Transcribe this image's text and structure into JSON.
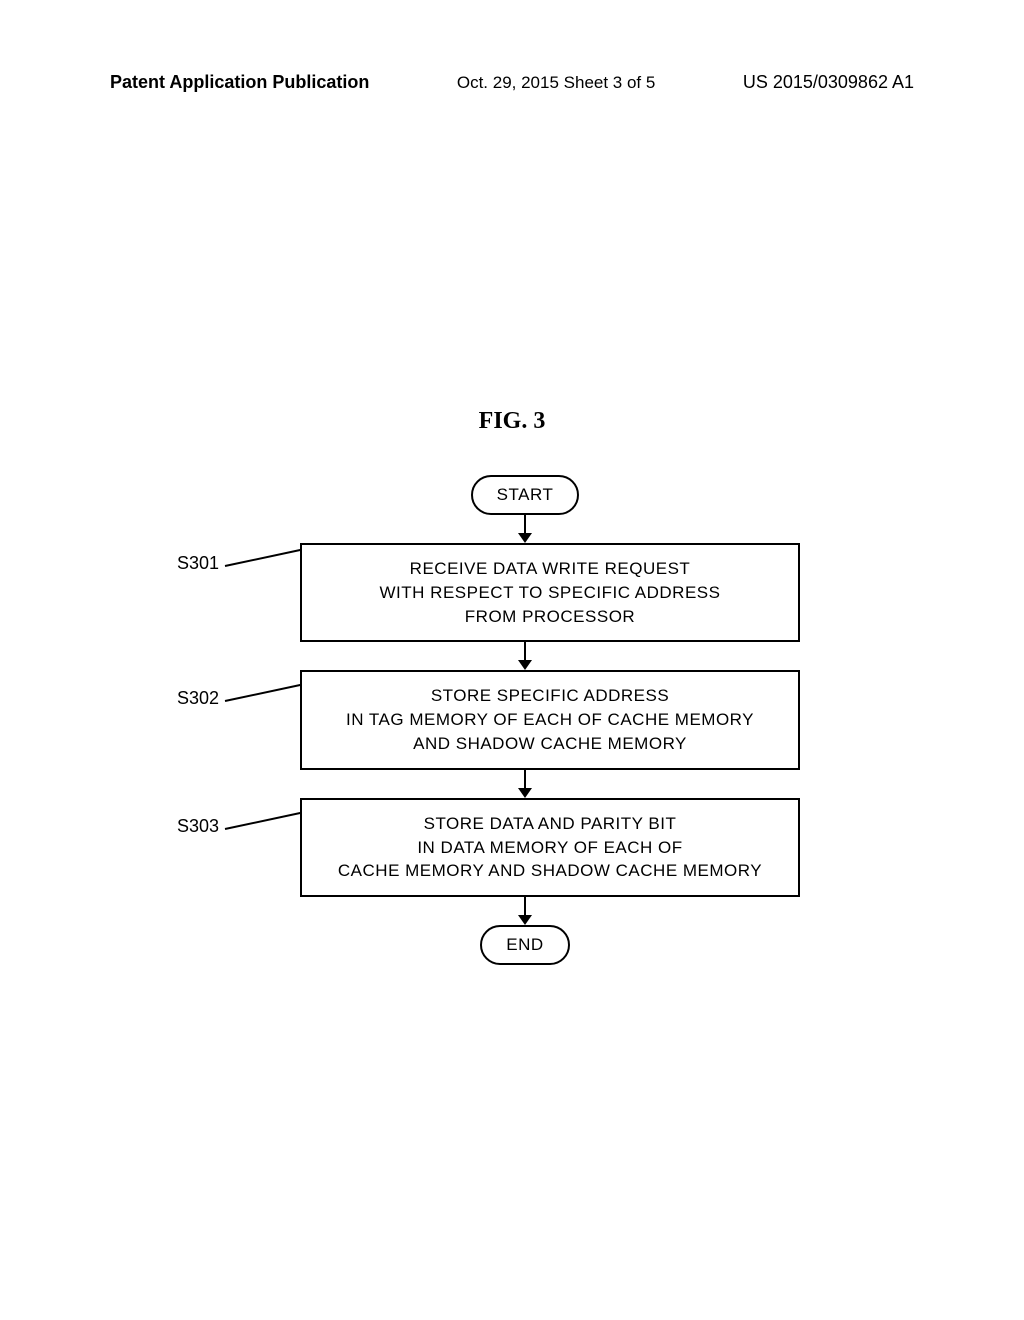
{
  "header": {
    "left": "Patent Application Publication",
    "center": "Oct. 29, 2015  Sheet 3 of 5",
    "right": "US 2015/0309862 A1"
  },
  "figure_title": "FIG. 3",
  "flowchart": {
    "type": "flowchart",
    "background_color": "#ffffff",
    "border_color": "#000000",
    "text_color": "#000000",
    "fontsize": 17,
    "nodes": [
      {
        "id": "start",
        "type": "terminal",
        "label": "START"
      },
      {
        "id": "s301",
        "type": "process",
        "label": "RECEIVE DATA WRITE REQUEST\nWITH RESPECT TO SPECIFIC ADDRESS\nFROM PROCESSOR",
        "step": "S301"
      },
      {
        "id": "s302",
        "type": "process",
        "label": "STORE SPECIFIC ADDRESS\nIN TAG MEMORY OF EACH OF CACHE MEMORY\nAND SHADOW CACHE MEMORY",
        "step": "S302"
      },
      {
        "id": "s303",
        "type": "process",
        "label": "STORE DATA AND PARITY BIT\nIN DATA MEMORY OF EACH OF\nCACHE MEMORY AND SHADOW CACHE MEMORY",
        "step": "S303"
      },
      {
        "id": "end",
        "type": "terminal",
        "label": "END"
      }
    ],
    "edges": [
      {
        "from": "start",
        "to": "s301"
      },
      {
        "from": "s301",
        "to": "s302"
      },
      {
        "from": "s302",
        "to": "s303"
      },
      {
        "from": "s303",
        "to": "end"
      }
    ],
    "step_labels": {
      "s301": "S301",
      "s302": "S302",
      "s303": "S303"
    }
  }
}
